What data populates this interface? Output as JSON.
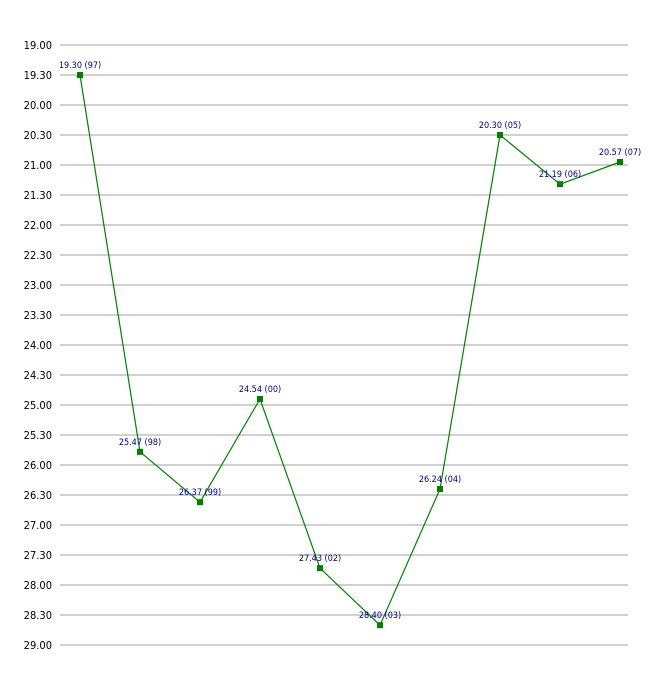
{
  "chart_data": {
    "type": "line",
    "y_axis": {
      "inverted": true,
      "range": [
        19.0,
        29.0
      ],
      "ticks": [
        "19.00",
        "19.30",
        "20.00",
        "20.30",
        "21.00",
        "21.30",
        "22.00",
        "22.30",
        "23.00",
        "23.30",
        "24.00",
        "24.30",
        "25.00",
        "25.30",
        "26.00",
        "26.30",
        "27.00",
        "27.30",
        "28.00",
        "28.30",
        "29.00"
      ]
    },
    "grid": true,
    "legend": "none",
    "series": [
      {
        "color": "#008000",
        "marker": "square",
        "points": [
          {
            "value": 19.5,
            "label": "19.30 (97)"
          },
          {
            "value": 25.78,
            "label": "25.47 (98)"
          },
          {
            "value": 26.62,
            "label": "26.37 (99)"
          },
          {
            "value": 24.9,
            "label": "24.54 (00)"
          },
          {
            "value": 27.72,
            "label": "27.43 (02)"
          },
          {
            "value": 28.67,
            "label": "28.40 (03)"
          },
          {
            "value": 26.4,
            "label": "26.24 (04)"
          },
          {
            "value": 20.5,
            "label": "20.30 (05)"
          },
          {
            "value": 21.32,
            "label": "21.19 (06)"
          },
          {
            "value": 20.95,
            "label": "20.57 (07)"
          }
        ]
      }
    ]
  }
}
